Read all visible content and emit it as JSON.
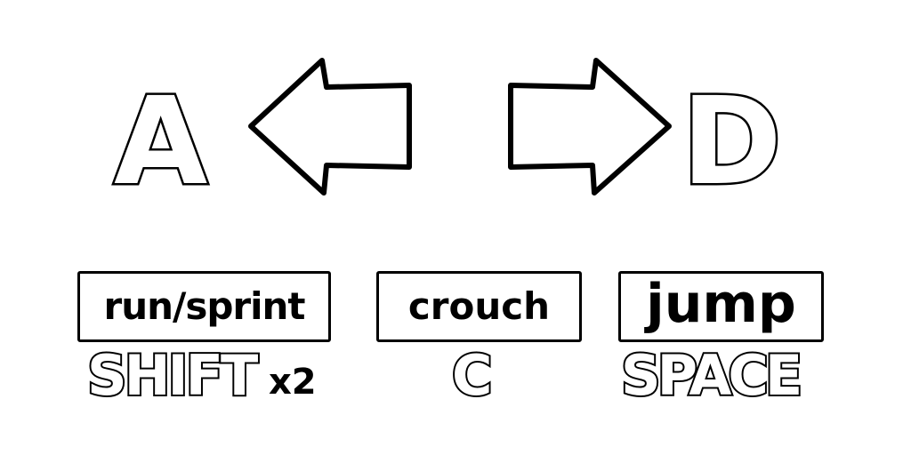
{
  "movement": {
    "left_key": "A",
    "right_key": "D",
    "left_arrow_icon": "arrow-left-icon",
    "right_arrow_icon": "arrow-right-icon"
  },
  "actions": [
    {
      "label": "run/sprint",
      "key": "SHIFT",
      "modifier": "x2"
    },
    {
      "label": "crouch",
      "key": "C"
    },
    {
      "label": "jump",
      "key": "SPACE"
    }
  ],
  "colors": {
    "background": "#ffffff",
    "outline": "#000000",
    "fill": "#ffffff"
  }
}
